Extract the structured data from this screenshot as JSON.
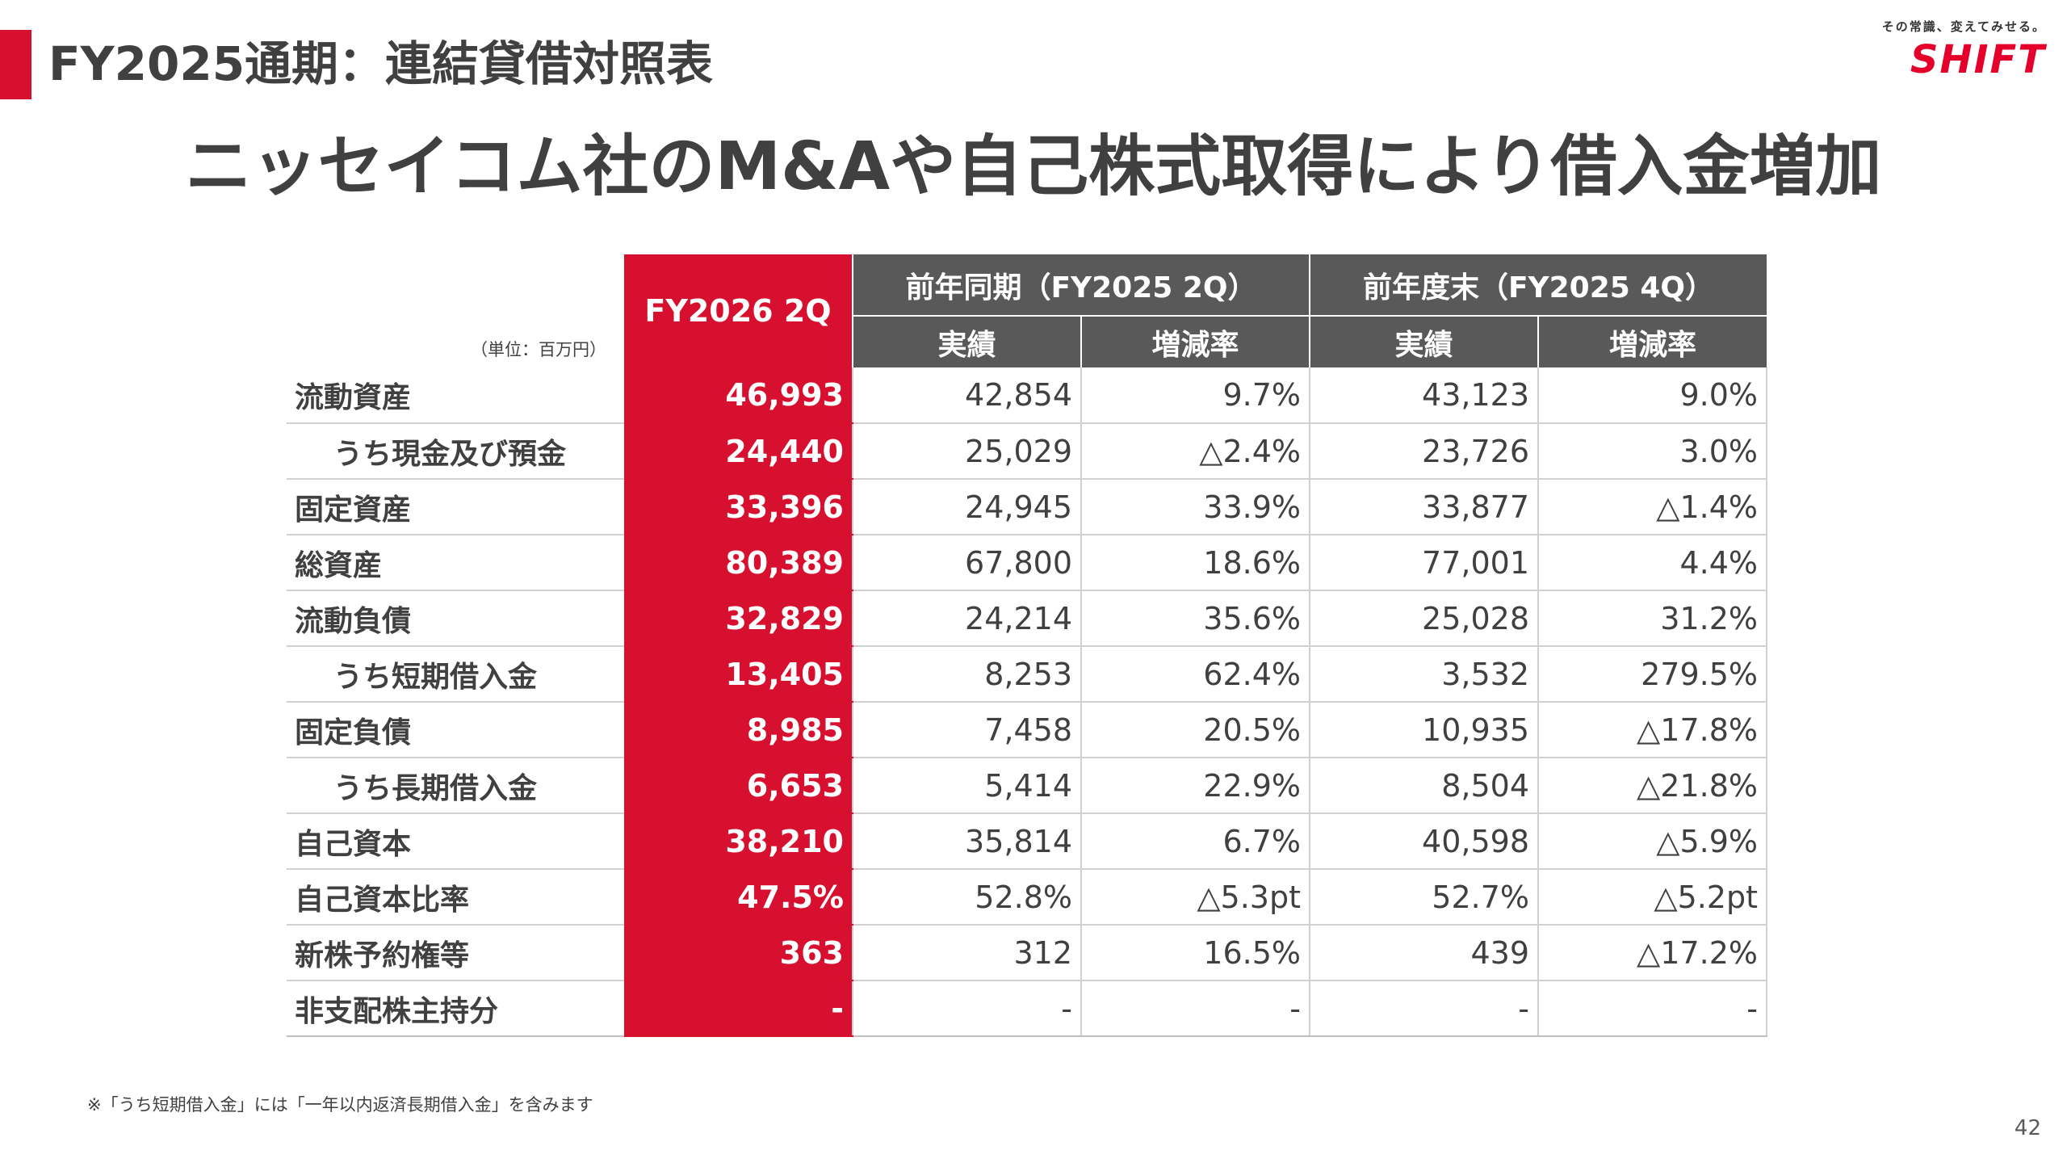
{
  "header": {
    "title": "FY2025通期：連結貸借対照表",
    "logo_tagline": "その常識、変えてみせる。",
    "logo_text": "SHIFT",
    "accent_color": "#d7102f"
  },
  "headline": "ニッセイコム社のM&Aや自己株式取得により借入金増加",
  "table": {
    "unit_label": "（単位：百万円）",
    "main_column": "FY2026 2Q",
    "groups": [
      {
        "label": "前年同期（FY2025 2Q）",
        "sub": [
          "実績",
          "増減率"
        ]
      },
      {
        "label": "前年度末（FY2025 4Q）",
        "sub": [
          "実績",
          "増減率"
        ]
      }
    ],
    "rows": [
      {
        "label": "流動資産",
        "indent": false,
        "current": "46,993",
        "yoy_actual": "42,854",
        "yoy_rate": "9.7%",
        "ye_actual": "43,123",
        "ye_rate": "9.0%"
      },
      {
        "label": "うち現金及び預金",
        "indent": true,
        "current": "24,440",
        "yoy_actual": "25,029",
        "yoy_rate": "△2.4%",
        "ye_actual": "23,726",
        "ye_rate": "3.0%"
      },
      {
        "label": "固定資産",
        "indent": false,
        "current": "33,396",
        "yoy_actual": "24,945",
        "yoy_rate": "33.9%",
        "ye_actual": "33,877",
        "ye_rate": "△1.4%"
      },
      {
        "label": "総資産",
        "indent": false,
        "current": "80,389",
        "yoy_actual": "67,800",
        "yoy_rate": "18.6%",
        "ye_actual": "77,001",
        "ye_rate": "4.4%"
      },
      {
        "label": "流動負債",
        "indent": false,
        "current": "32,829",
        "yoy_actual": "24,214",
        "yoy_rate": "35.6%",
        "ye_actual": "25,028",
        "ye_rate": "31.2%"
      },
      {
        "label": "うち短期借入金",
        "indent": true,
        "current": "13,405",
        "yoy_actual": "8,253",
        "yoy_rate": "62.4%",
        "ye_actual": "3,532",
        "ye_rate": "279.5%"
      },
      {
        "label": "固定負債",
        "indent": false,
        "current": "8,985",
        "yoy_actual": "7,458",
        "yoy_rate": "20.5%",
        "ye_actual": "10,935",
        "ye_rate": "△17.8%"
      },
      {
        "label": "うち長期借入金",
        "indent": true,
        "current": "6,653",
        "yoy_actual": "5,414",
        "yoy_rate": "22.9%",
        "ye_actual": "8,504",
        "ye_rate": "△21.8%"
      },
      {
        "label": "自己資本",
        "indent": false,
        "current": "38,210",
        "yoy_actual": "35,814",
        "yoy_rate": "6.7%",
        "ye_actual": "40,598",
        "ye_rate": "△5.9%"
      },
      {
        "label": "自己資本比率",
        "indent": false,
        "current": "47.5%",
        "yoy_actual": "52.8%",
        "yoy_rate": "△5.3pt",
        "ye_actual": "52.7%",
        "ye_rate": "△5.2pt"
      },
      {
        "label": "新株予約権等",
        "indent": false,
        "current": "363",
        "yoy_actual": "312",
        "yoy_rate": "16.5%",
        "ye_actual": "439",
        "ye_rate": "△17.2%"
      },
      {
        "label": "非支配株主持分",
        "indent": false,
        "current": "-",
        "yoy_actual": "-",
        "yoy_rate": "-",
        "ye_actual": "-",
        "ye_rate": "-"
      }
    ]
  },
  "footnote": "※「うち短期借入金」には「一年以内返済長期借入金」を含みます",
  "page_number": "42"
}
